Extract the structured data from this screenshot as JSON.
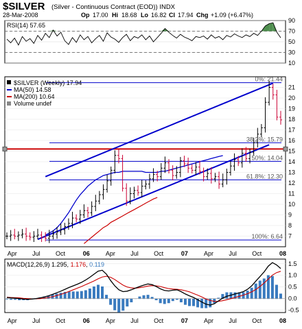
{
  "header": {
    "symbol": "$SILVER",
    "description": "(Silver - Continuous Contract (EOD)) INDX",
    "date": "28-Mar-2008",
    "ohlc": {
      "op_label": "Op",
      "op": "17.00",
      "hi_label": "Hi",
      "hi": "18.68",
      "lo_label": "Lo",
      "lo": "16.82",
      "cl_label": "Cl",
      "cl": "17.94",
      "chg_label": "Chg",
      "chg": "+1.09 (+6.47%)"
    }
  },
  "colors": {
    "price_bar_up": "#000000",
    "price_bar_down": "#cc0033",
    "ma50": "#0000cc",
    "ma200": "#cc0000",
    "channel": "#0000cc",
    "fib_line": "#0000cc",
    "horizontal_support": "#cc0000",
    "macd_line": "#000000",
    "signal_line": "#cc0000",
    "histogram": "#3a7bbf",
    "rsi_fill": "#4f8f4f"
  },
  "chart_data": [
    {
      "type": "line",
      "title": "RSI(14) 57.65",
      "ylim": [
        10,
        90
      ],
      "yticks": [
        "90",
        "70",
        "50",
        "30",
        "10"
      ],
      "overbought": 70,
      "oversold": 30,
      "series": [
        {
          "name": "RSI(14)",
          "values": [
            55,
            48,
            57,
            44,
            60,
            51,
            56,
            47,
            62,
            53,
            66,
            58,
            72,
            61,
            68,
            52,
            45,
            58,
            49,
            63,
            54,
            60,
            48,
            56,
            62,
            51,
            67,
            59,
            55,
            49,
            58,
            64,
            52,
            60,
            57,
            63,
            54,
            61,
            50,
            58,
            66,
            75,
            68,
            62,
            57,
            64,
            59,
            56,
            52,
            60,
            58,
            61,
            55,
            63,
            57,
            60,
            54,
            62,
            59,
            65,
            61,
            58,
            63,
            60,
            66,
            62,
            70,
            80,
            84,
            86,
            68,
            57.65
          ]
        }
      ]
    },
    {
      "type": "line",
      "title": "$SILVER (Weekly) 17.94",
      "ylim": [
        6,
        22
      ],
      "yticks": [
        "21",
        "20",
        "19",
        "18",
        "17",
        "16",
        "15",
        "14",
        "13",
        "12",
        "11",
        "10",
        "9",
        "8",
        "7"
      ],
      "legend": [
        {
          "label": "$SILVER (Weekly) 17.94"
        },
        {
          "label": "MA(50) 14.58"
        },
        {
          "label": "MA(200) 10.64"
        },
        {
          "label": "Volume undef"
        }
      ],
      "xlabels": [
        "Apr",
        "Jul",
        "Oct",
        "06",
        "Apr",
        "Jul",
        "Oct",
        "07",
        "Apr",
        "Jul",
        "Oct",
        "08"
      ],
      "close": [
        7.0,
        7.1,
        7.0,
        7.1,
        7.2,
        7.0,
        6.9,
        7.0,
        7.1,
        6.9,
        6.8,
        7.0,
        7.2,
        7.4,
        7.6,
        7.9,
        8.2,
        8.7,
        8.6,
        9.0,
        9.4,
        9.2,
        9.8,
        10.3,
        10.9,
        11.4,
        12.2,
        13.2,
        14.6,
        14.3,
        11.5,
        10.3,
        11.0,
        11.3,
        11.1,
        11.7,
        11.9,
        12.4,
        12.8,
        12.6,
        13.4,
        13.9,
        13.2,
        12.7,
        13.0,
        14.1,
        13.8,
        13.4,
        13.2,
        13.5,
        13.1,
        12.6,
        12.9,
        12.4,
        12.6,
        11.9,
        12.3,
        13.0,
        13.6,
        14.2,
        13.9,
        14.8,
        14.3,
        14.9,
        15.8,
        16.6,
        17.2,
        19.6,
        21.0,
        20.3,
        18.2,
        17.94
      ],
      "series": [
        {
          "name": "MA(50)",
          "values_start_week": 10,
          "values": [
            7.1,
            7.3,
            7.5,
            7.8,
            8.2,
            8.7,
            9.2,
            9.8,
            10.4,
            10.9,
            11.3,
            11.7,
            12.0,
            12.3,
            12.5,
            12.7,
            12.8,
            12.9,
            13.0,
            13.0,
            13.1,
            13.1,
            13.1,
            13.1,
            13.1,
            13.1,
            13.0,
            13.0,
            13.0,
            13.0,
            13.1,
            13.1,
            13.2,
            13.3,
            13.4,
            13.5,
            13.6,
            13.7,
            13.8,
            13.9,
            14.0,
            14.1,
            14.2,
            14.3,
            14.4,
            14.5,
            14.58
          ]
        },
        {
          "name": "MA(200)",
          "values_start_week": 20,
          "values": [
            6.3,
            6.6,
            6.9,
            7.2,
            7.5,
            7.8,
            8.0,
            8.3,
            8.5,
            8.7,
            8.9,
            9.1,
            9.3,
            9.5,
            9.7,
            9.9,
            10.1,
            10.3,
            10.5,
            10.64
          ]
        }
      ],
      "annotations": [
        {
          "label": "0%: 21.44",
          "value": 21.44
        },
        {
          "label": "38.2%: 15.79",
          "value": 15.79
        },
        {
          "label": "50%: 14.04",
          "value": 14.04
        },
        {
          "label": "61.8%: 12.30",
          "value": 12.3
        },
        {
          "label": "100%: 6.64",
          "value": 6.64
        }
      ],
      "support_level": 15.2
    },
    {
      "type": "line",
      "title": "MACD(12,26,9) 1.295, 1.176, 0.119",
      "ylim": [
        -0.6,
        1.7
      ],
      "yticks": [
        "1.5",
        "1.0",
        "0.5",
        "0.0",
        "-0.5"
      ],
      "legend": [
        {
          "label": "MACD(12,26,9) 1.295"
        },
        {
          "label": "1.176"
        },
        {
          "label": "0.119"
        }
      ],
      "xlabels": [
        "Apr",
        "Jul",
        "Oct",
        "06",
        "Apr",
        "Jul",
        "Oct",
        "07",
        "Apr",
        "Jul",
        "Oct",
        "08"
      ],
      "series": [
        {
          "name": "MACD",
          "values": [
            0.05,
            0.03,
            0.02,
            0.0,
            -0.02,
            -0.03,
            -0.02,
            0.0,
            0.03,
            0.07,
            0.12,
            0.18,
            0.25,
            0.32,
            0.4,
            0.48,
            0.55,
            0.62,
            0.7,
            0.8,
            0.92,
            1.05,
            1.18,
            1.22,
            1.05,
            0.78,
            0.55,
            0.38,
            0.3,
            0.32,
            0.38,
            0.45,
            0.52,
            0.58,
            0.63,
            0.6,
            0.52,
            0.42,
            0.35,
            0.33,
            0.36,
            0.38,
            0.3,
            0.2,
            0.12,
            0.05,
            -0.05,
            -0.15,
            -0.24,
            -0.28,
            -0.22,
            -0.1,
            0.02,
            0.1,
            0.15,
            0.2,
            0.25,
            0.3,
            0.4,
            0.55,
            0.75,
            0.95,
            1.15,
            1.4,
            1.55,
            1.45,
            1.295
          ]
        },
        {
          "name": "Signal",
          "values": [
            0.06,
            0.05,
            0.04,
            0.03,
            0.01,
            0.0,
            -0.01,
            -0.01,
            0.0,
            0.02,
            0.05,
            0.08,
            0.13,
            0.18,
            0.24,
            0.31,
            0.38,
            0.45,
            0.52,
            0.6,
            0.68,
            0.76,
            0.85,
            0.93,
            0.96,
            0.92,
            0.82,
            0.7,
            0.58,
            0.5,
            0.46,
            0.45,
            0.47,
            0.5,
            0.54,
            0.56,
            0.55,
            0.52,
            0.47,
            0.43,
            0.41,
            0.4,
            0.38,
            0.34,
            0.29,
            0.22,
            0.15,
            0.07,
            -0.02,
            -0.08,
            -0.12,
            -0.12,
            -0.09,
            -0.05,
            0.0,
            0.05,
            0.1,
            0.15,
            0.21,
            0.29,
            0.39,
            0.52,
            0.67,
            0.84,
            1.01,
            1.12,
            1.176
          ]
        }
      ]
    }
  ]
}
